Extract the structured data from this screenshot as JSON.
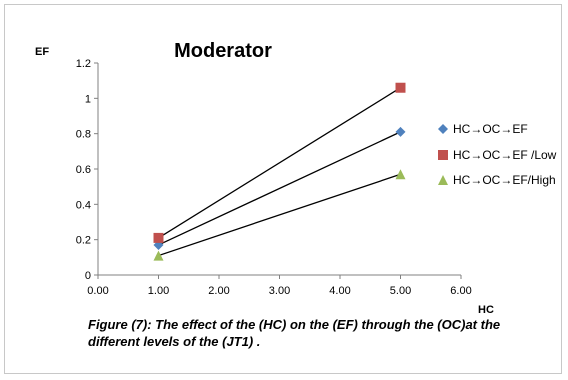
{
  "chart_data": {
    "type": "line",
    "title": "Moderator",
    "ylabel": "EF",
    "xlabel": "HC",
    "xlim": [
      0,
      6
    ],
    "ylim": [
      0,
      1.2
    ],
    "x_ticks": [
      "0.00",
      "1.00",
      "2.00",
      "3.00",
      "4.00",
      "5.00",
      "6.00"
    ],
    "y_ticks": [
      "0",
      "0.2",
      "0.4",
      "0.6",
      "0.8",
      "1",
      "1.2"
    ],
    "grid": false,
    "legend_position": "right",
    "series": [
      {
        "name": "HC→OC→EF",
        "marker": "diamond",
        "color": "#4f81bd",
        "x": [
          1,
          5
        ],
        "y": [
          0.17,
          0.81
        ]
      },
      {
        "name": "HC→OC→EF /Low",
        "marker": "square",
        "color": "#c0504d",
        "x": [
          1,
          5
        ],
        "y": [
          0.21,
          1.06
        ]
      },
      {
        "name": "HC→OC→EF/High",
        "marker": "triangle",
        "color": "#9bbb59",
        "x": [
          1,
          5
        ],
        "y": [
          0.11,
          0.57
        ]
      }
    ]
  },
  "caption": {
    "line1": "Figure (7): The effect of the (HC) on the (EF)  through the (OC)at the",
    "line2": "different levels of the (JT1) ."
  }
}
